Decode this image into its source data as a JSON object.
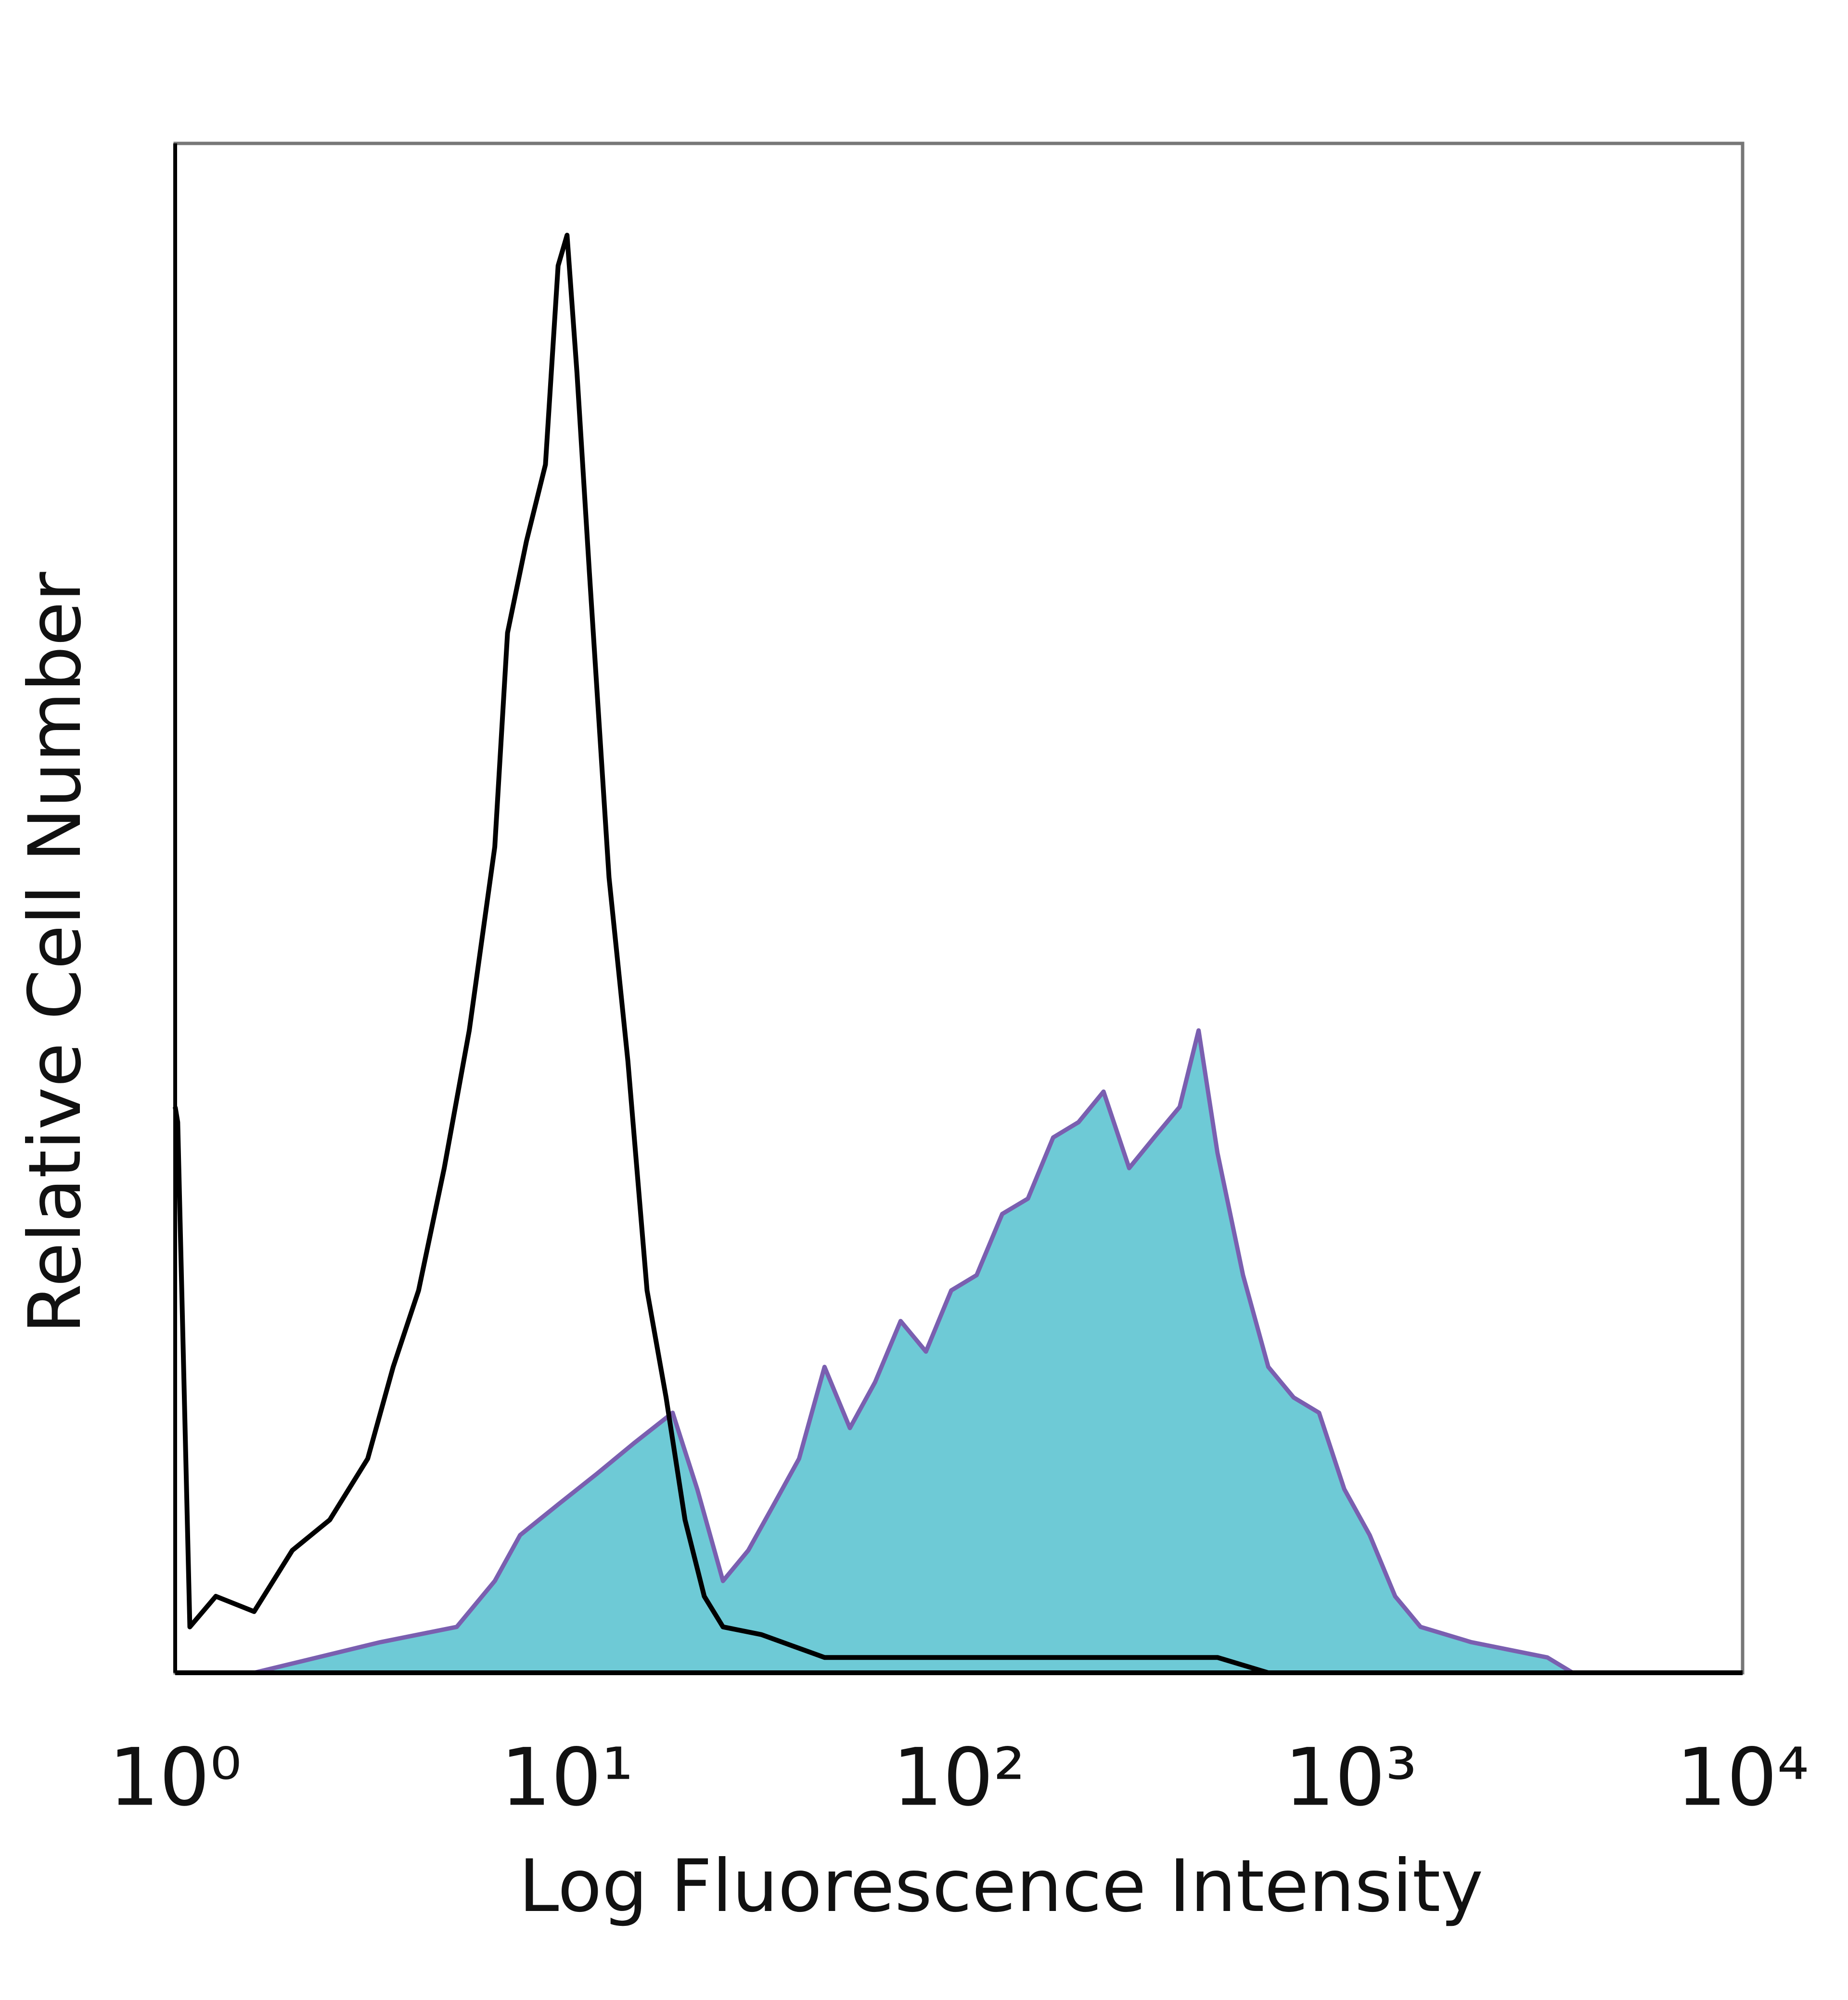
{
  "chart_data": {
    "type": "histogram-overlay",
    "xlabel": "Log Fluorescence Intensity",
    "ylabel": "Relative Cell Number",
    "xscale": "log",
    "xlim": [
      1,
      10000
    ],
    "ylim": [
      0,
      100
    ],
    "xticks": [
      {
        "value": 1,
        "label": "10⁰"
      },
      {
        "value": 10,
        "label": "10¹"
      },
      {
        "value": 100,
        "label": "10²"
      },
      {
        "value": 1000,
        "label": "10³"
      },
      {
        "value": 10000,
        "label": "10⁴"
      }
    ],
    "series": [
      {
        "style": "line",
        "color": "#000000",
        "x": [
          1,
          1.015,
          1.09,
          1.27,
          1.59,
          1.99,
          2.48,
          3.1,
          3.6,
          4.18,
          4.86,
          5.63,
          6.54,
          7.05,
          7.88,
          8.81,
          9.49,
          10,
          10.6,
          11.4,
          12.8,
          14.3,
          16.0,
          17.9,
          20.0,
          22.4,
          25.0,
          31.3,
          45.4,
          65.9,
          139,
          292,
          457,
          616
        ],
        "values": [
          37,
          36,
          3,
          5,
          4,
          8,
          10,
          14,
          20,
          25,
          33,
          42,
          54,
          68,
          74,
          79,
          92,
          94,
          85,
          72,
          52,
          40,
          25,
          18,
          10,
          5,
          3,
          2.5,
          1,
          1,
          1,
          1,
          1,
          0
        ]
      },
      {
        "style": "area",
        "color": "#6ecad6",
        "edge_color": "#7a5fb0",
        "x": [
          1.59,
          3.34,
          5.23,
          6.54,
          7.59,
          9.49,
          11.9,
          14.8,
          18.6,
          21.5,
          25.0,
          29.0,
          33.7,
          39.1,
          45.4,
          52.7,
          61.1,
          71.0,
          82.4,
          95.6,
          111,
          129,
          150,
          174,
          202,
          234,
          272,
          315,
          366,
          409,
          457,
          531,
          616,
          715,
          830,
          963,
          1118,
          1298,
          1507,
          2030,
          3175,
          3684
        ],
        "values": [
          0,
          2,
          3,
          6,
          9,
          11,
          13,
          15,
          17,
          12,
          6,
          8,
          11,
          14,
          20,
          16,
          19,
          23,
          21,
          25,
          26,
          30,
          31,
          35,
          36,
          38,
          33,
          35,
          37,
          42,
          34,
          26,
          20,
          18,
          17,
          12,
          9,
          5,
          3,
          2,
          1,
          0
        ]
      }
    ]
  }
}
